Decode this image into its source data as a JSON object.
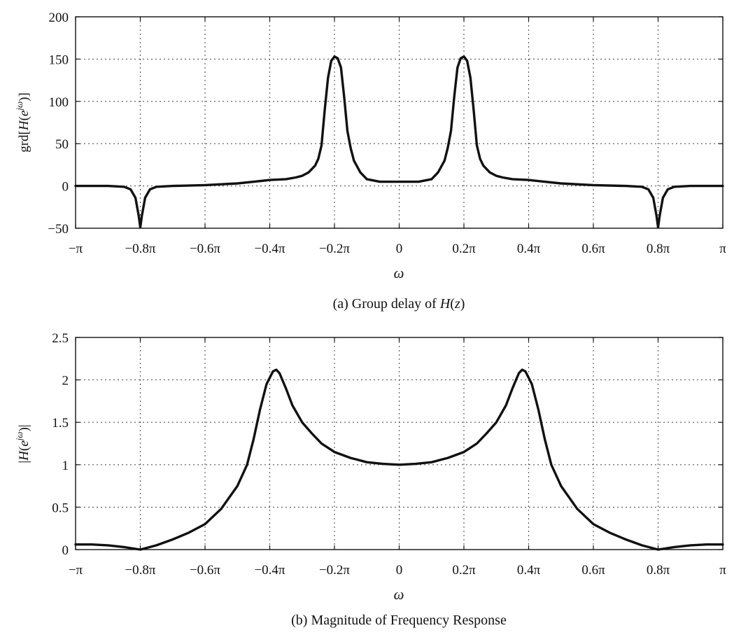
{
  "chart_data": [
    {
      "type": "line",
      "caption": "(a) Group delay of H(z)",
      "xlabel": "ω",
      "ylabel": "grd[H(e^{jω})]",
      "xlim": [
        -1,
        1
      ],
      "x_unit": "π",
      "ylim": [
        -50,
        200
      ],
      "grid": true,
      "x_ticks": [
        -1,
        -0.8,
        -0.6,
        -0.4,
        -0.2,
        0,
        0.2,
        0.4,
        0.6,
        0.8,
        1
      ],
      "x_tick_labels": [
        "−π",
        "−0.8π",
        "−0.6π",
        "−0.4π",
        "−0.2π",
        "0",
        "0.2π",
        "0.4π",
        "0.6π",
        "0.8π",
        "π"
      ],
      "y_ticks": [
        -50,
        0,
        50,
        100,
        150,
        200
      ],
      "y_tick_labels": [
        "−50",
        "0",
        "50",
        "100",
        "150",
        "200"
      ],
      "series": [
        {
          "x": [
            -1,
            -0.9,
            -0.85,
            -0.83,
            -0.815,
            -0.805,
            -0.8,
            -0.795,
            -0.785,
            -0.77,
            -0.75,
            -0.7,
            -0.6,
            -0.5,
            -0.45,
            -0.4,
            -0.35,
            -0.32,
            -0.3,
            -0.28,
            -0.26,
            -0.25,
            -0.24,
            -0.23,
            -0.22,
            -0.21,
            -0.2,
            -0.19,
            -0.18,
            -0.17,
            -0.16,
            -0.15,
            -0.14,
            -0.12,
            -0.1,
            -0.06,
            0,
            0.06,
            0.1,
            0.12,
            0.14,
            0.15,
            0.16,
            0.17,
            0.18,
            0.19,
            0.2,
            0.21,
            0.22,
            0.23,
            0.24,
            0.25,
            0.26,
            0.28,
            0.3,
            0.32,
            0.35,
            0.4,
            0.45,
            0.5,
            0.6,
            0.7,
            0.75,
            0.77,
            0.785,
            0.795,
            0.8,
            0.805,
            0.815,
            0.83,
            0.85,
            0.9,
            1
          ],
          "values": [
            0,
            0,
            -1,
            -4,
            -14,
            -35,
            -49,
            -35,
            -14,
            -4,
            -1,
            0,
            1,
            3,
            5,
            7,
            8,
            10,
            12,
            16,
            24,
            32,
            48,
            90,
            128,
            148,
            153,
            151,
            140,
            105,
            65,
            45,
            30,
            16,
            8,
            5,
            5,
            5,
            8,
            16,
            30,
            45,
            65,
            105,
            140,
            151,
            153,
            148,
            128,
            90,
            48,
            32,
            24,
            16,
            12,
            10,
            8,
            7,
            5,
            3,
            1,
            0,
            -1,
            -4,
            -14,
            -35,
            -49,
            -35,
            -14,
            -4,
            -1,
            0,
            0
          ]
        }
      ]
    },
    {
      "type": "line",
      "caption": "(b) Magnitude of Frequency Response",
      "xlabel": "ω",
      "ylabel": "|H(e^{jω})|",
      "xlim": [
        -1,
        1
      ],
      "x_unit": "π",
      "ylim": [
        0,
        2.5
      ],
      "grid": true,
      "x_ticks": [
        -1,
        -0.8,
        -0.6,
        -0.4,
        -0.2,
        0,
        0.2,
        0.4,
        0.6,
        0.8,
        1
      ],
      "x_tick_labels": [
        "−π",
        "−0.8π",
        "−0.6π",
        "−0.4π",
        "−0.2π",
        "0",
        "0.2π",
        "0.4π",
        "0.6π",
        "0.8π",
        "π"
      ],
      "y_ticks": [
        0,
        0.5,
        1,
        1.5,
        2,
        2.5
      ],
      "y_tick_labels": [
        "0",
        "0.5",
        "1",
        "1.5",
        "2",
        "2.5"
      ],
      "series": [
        {
          "x": [
            -1,
            -0.95,
            -0.9,
            -0.85,
            -0.8,
            -0.75,
            -0.7,
            -0.65,
            -0.6,
            -0.55,
            -0.5,
            -0.47,
            -0.45,
            -0.43,
            -0.41,
            -0.39,
            -0.38,
            -0.37,
            -0.35,
            -0.33,
            -0.3,
            -0.27,
            -0.24,
            -0.2,
            -0.15,
            -0.1,
            -0.05,
            0,
            0.05,
            0.1,
            0.15,
            0.2,
            0.24,
            0.27,
            0.3,
            0.33,
            0.35,
            0.37,
            0.38,
            0.39,
            0.41,
            0.43,
            0.45,
            0.47,
            0.5,
            0.55,
            0.6,
            0.65,
            0.7,
            0.75,
            0.8,
            0.85,
            0.9,
            0.95,
            1
          ],
          "values": [
            0.06,
            0.06,
            0.05,
            0.03,
            0.0,
            0.05,
            0.12,
            0.2,
            0.3,
            0.48,
            0.75,
            1.0,
            1.3,
            1.65,
            1.95,
            2.1,
            2.12,
            2.08,
            1.9,
            1.7,
            1.5,
            1.37,
            1.25,
            1.15,
            1.08,
            1.03,
            1.01,
            1.0,
            1.01,
            1.03,
            1.08,
            1.15,
            1.25,
            1.37,
            1.5,
            1.7,
            1.9,
            2.08,
            2.12,
            2.1,
            1.95,
            1.65,
            1.3,
            1.0,
            0.75,
            0.48,
            0.3,
            0.2,
            0.12,
            0.05,
            0.0,
            0.03,
            0.05,
            0.06,
            0.06
          ]
        }
      ]
    }
  ]
}
